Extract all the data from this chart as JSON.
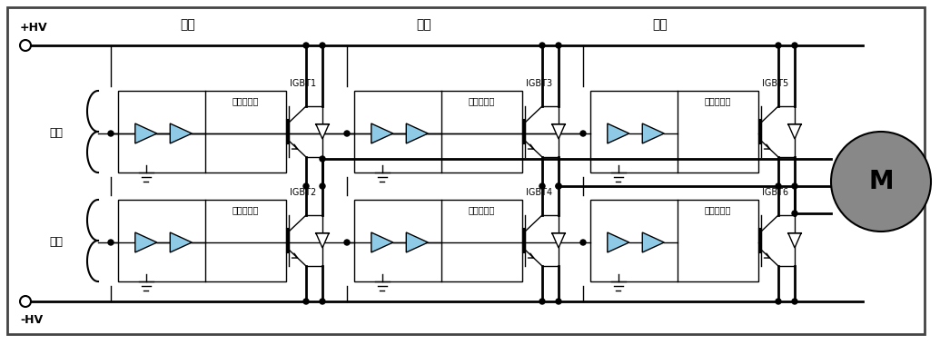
{
  "bg_color": "#ffffff",
  "line_color": "#000000",
  "triangle_fill": "#8ecae6",
  "motor_fill": "#888888",
  "motor_text": "M",
  "hv_plus": "+HV",
  "hv_minus": "-HV",
  "label_high": "高测",
  "label_low": "低测",
  "label_iso": "隔离",
  "label_gate": "门极驱动器",
  "igbt_labels": [
    "IGBT1",
    "IGBT2",
    "IGBT3",
    "IGBT4",
    "IGBT5",
    "IGBT6"
  ],
  "figsize": [
    10.35,
    3.8
  ],
  "dpi": 100
}
